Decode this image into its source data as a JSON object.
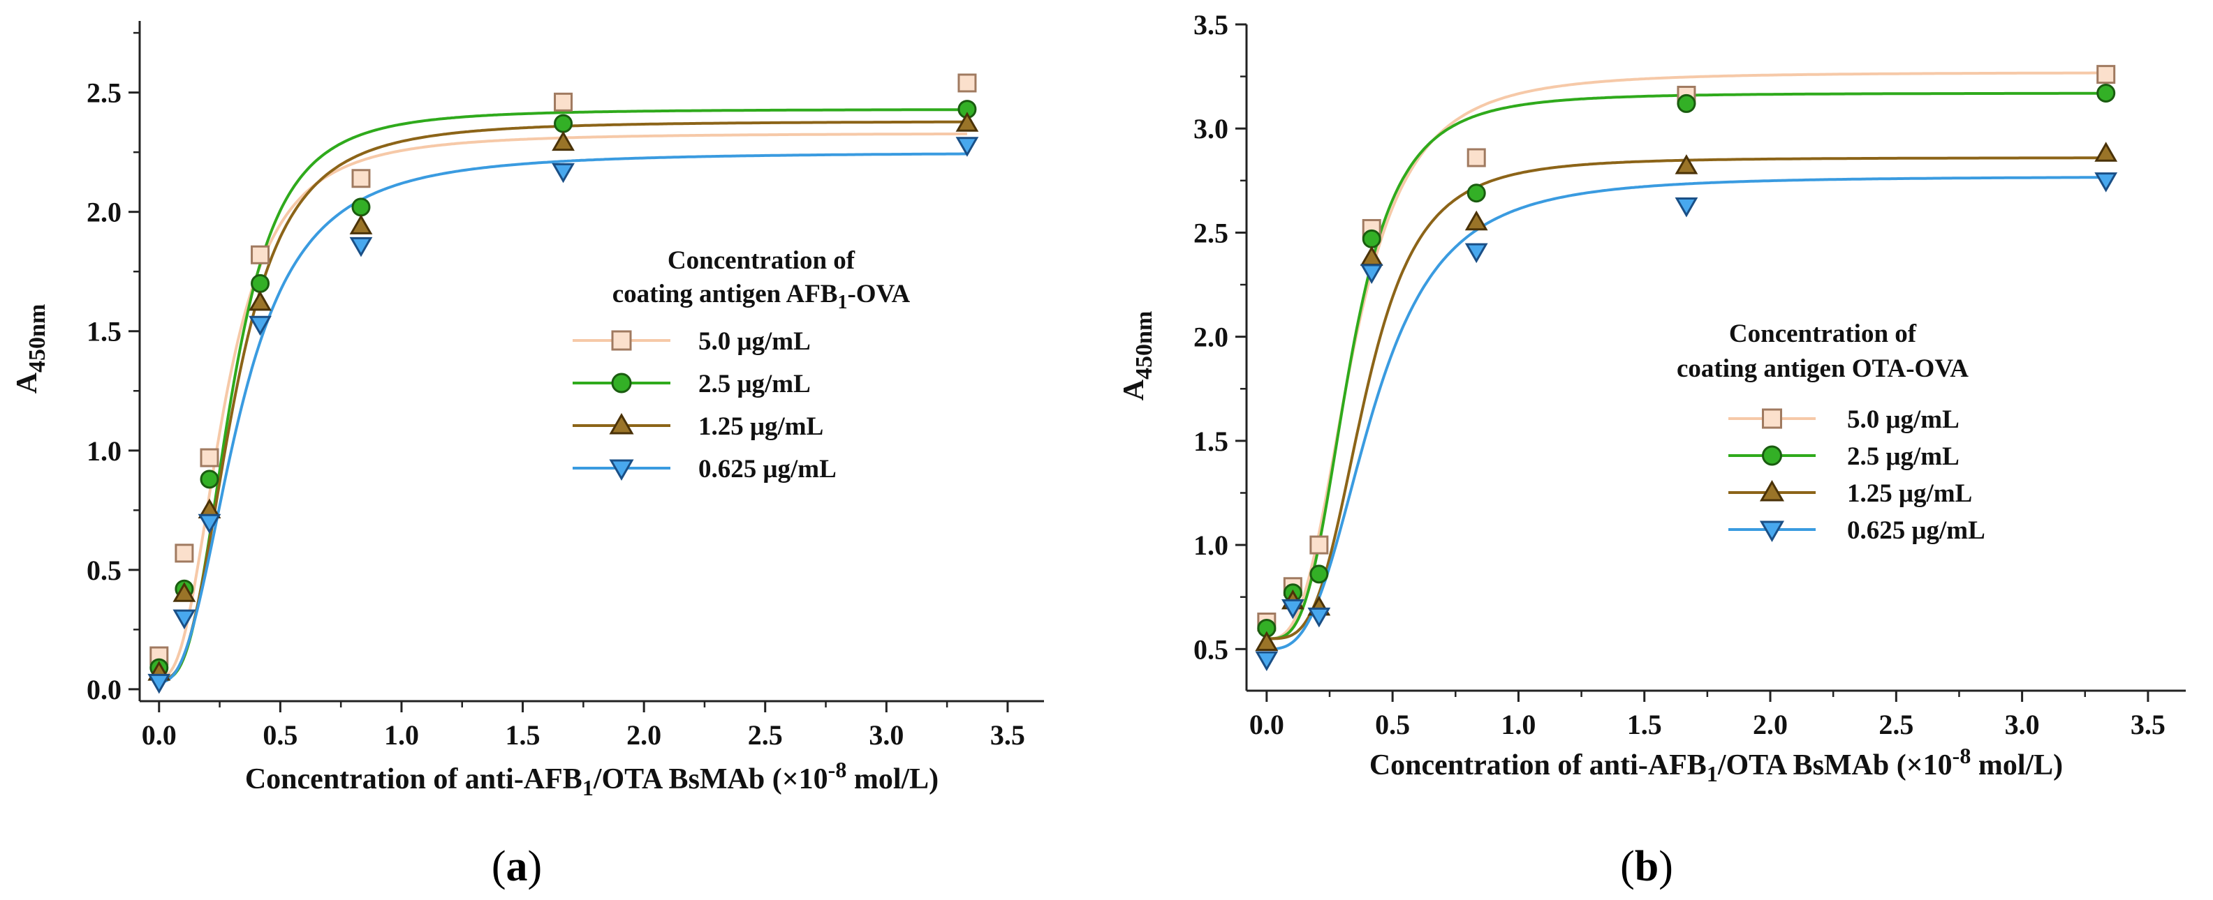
{
  "colors": {
    "s5": "#f6c9a8",
    "s25": "#2faa1c",
    "s125": "#8c6418",
    "s0625": "#3a9be0",
    "s5_marker_fill": "#fbe0cc",
    "s5_marker_edge": "#a07a60",
    "s25_marker_fill": "#33b026",
    "s25_marker_edge": "#1a5c10",
    "s125_marker_fill": "#9a7428",
    "s125_marker_edge": "#4a3208",
    "s0625_marker_fill": "#48a8ee",
    "s0625_marker_edge": "#1a4f86"
  },
  "chart_data": [
    {
      "type": "scatter",
      "panel_label": "a",
      "ylabel_main": "A",
      "ylabel_sub": "450nm",
      "xlabel_pre": "Concentration of anti-AFB",
      "xlabel_sub": "1",
      "xlabel_mid": "/OTA BsMAb (×10",
      "xlabel_sup": "-8",
      "xlabel_post": " mol/L)",
      "xlim": [
        -0.08,
        3.65
      ],
      "ylim": [
        -0.05,
        2.8
      ],
      "xticks": [
        "0.0",
        "0.5",
        "1.0",
        "1.5",
        "2.0",
        "2.5",
        "3.0",
        "3.5"
      ],
      "yticks": [
        "0.0",
        "0.5",
        "1.0",
        "1.5",
        "2.0",
        "2.5"
      ],
      "legend_title_line1": "Concentration of",
      "legend_title_line2_pre": "coating antigen AFB",
      "legend_title_line2_sub": "1",
      "legend_title_line2_post": "-OVA",
      "legend_position": "center-right",
      "x": [
        0,
        0.104,
        0.208,
        0.417,
        0.833,
        1.667,
        3.333
      ],
      "series": [
        {
          "name": "5.0 μg/mL",
          "marker": "square",
          "color_key": "s5",
          "values": [
            0.14,
            0.57,
            0.97,
            1.82,
            2.14,
            2.46,
            2.54
          ],
          "fit": {
            "A1": 0.05,
            "A2": 2.33,
            "x0": 0.27,
            "p": 2.6
          }
        },
        {
          "name": "2.5 μg/mL",
          "marker": "circle",
          "color_key": "s25",
          "values": [
            0.09,
            0.42,
            0.88,
            1.7,
            2.02,
            2.37,
            2.43
          ],
          "fit": {
            "A1": 0.04,
            "A2": 2.43,
            "x0": 0.3,
            "p": 3.0
          }
        },
        {
          "name": "1.25 μg/mL",
          "marker": "triangle-up",
          "color_key": "s125",
          "values": [
            0.07,
            0.4,
            0.75,
            1.62,
            1.94,
            2.29,
            2.37
          ],
          "fit": {
            "A1": 0.04,
            "A2": 2.38,
            "x0": 0.31,
            "p": 2.8
          }
        },
        {
          "name": "0.625 μg/mL",
          "marker": "triangle-down",
          "color_key": "s0625",
          "values": [
            0.03,
            0.3,
            0.7,
            1.53,
            1.86,
            2.17,
            2.28
          ],
          "fit": {
            "A1": 0.03,
            "A2": 2.25,
            "x0": 0.33,
            "p": 2.5
          }
        }
      ]
    },
    {
      "type": "scatter",
      "panel_label": "b",
      "ylabel_main": "A",
      "ylabel_sub": "450nm",
      "xlabel_pre": "Concentration of anti-AFB",
      "xlabel_sub": "1",
      "xlabel_mid": "/OTA BsMAb (×10",
      "xlabel_sup": "-8",
      "xlabel_post": " mol/L)",
      "xlim": [
        -0.08,
        3.65
      ],
      "ylim": [
        0.3,
        3.5
      ],
      "xticks": [
        "0.0",
        "0.5",
        "1.0",
        "1.5",
        "2.0",
        "2.5",
        "3.0",
        "3.5"
      ],
      "yticks": [
        "0.5",
        "1.0",
        "1.5",
        "2.0",
        "2.5",
        "3.0",
        "3.5"
      ],
      "legend_title_line1": "Concentration of",
      "legend_title_line2_pre": "coating antigen OTA-OVA",
      "legend_title_line2_sub": "",
      "legend_title_line2_post": "",
      "legend_position": "center-right",
      "x": [
        0,
        0.104,
        0.208,
        0.417,
        0.833,
        1.667,
        3.333
      ],
      "series": [
        {
          "name": "5.0 μg/mL",
          "marker": "square",
          "color_key": "s5",
          "values": [
            0.63,
            0.8,
            1.0,
            2.52,
            2.86,
            3.16,
            3.26
          ],
          "fit": {
            "A1": 0.55,
            "A2": 3.27,
            "x0": 0.34,
            "p": 3.0
          }
        },
        {
          "name": "2.5 μg/mL",
          "marker": "circle",
          "color_key": "s25",
          "values": [
            0.6,
            0.77,
            0.86,
            2.47,
            2.69,
            3.12,
            3.17
          ],
          "fit": {
            "A1": 0.55,
            "A2": 3.17,
            "x0": 0.33,
            "p": 3.4
          }
        },
        {
          "name": "1.25 μg/mL",
          "marker": "triangle-up",
          "color_key": "s125",
          "values": [
            0.53,
            0.73,
            0.7,
            2.38,
            2.55,
            2.82,
            2.88
          ],
          "fit": {
            "A1": 0.55,
            "A2": 2.86,
            "x0": 0.39,
            "p": 3.6
          }
        },
        {
          "name": "0.625 μg/mL",
          "marker": "triangle-down",
          "color_key": "s0625",
          "values": [
            0.45,
            0.7,
            0.66,
            2.31,
            2.41,
            2.63,
            2.75
          ],
          "fit": {
            "A1": 0.5,
            "A2": 2.77,
            "x0": 0.42,
            "p": 3.0
          }
        }
      ]
    }
  ]
}
